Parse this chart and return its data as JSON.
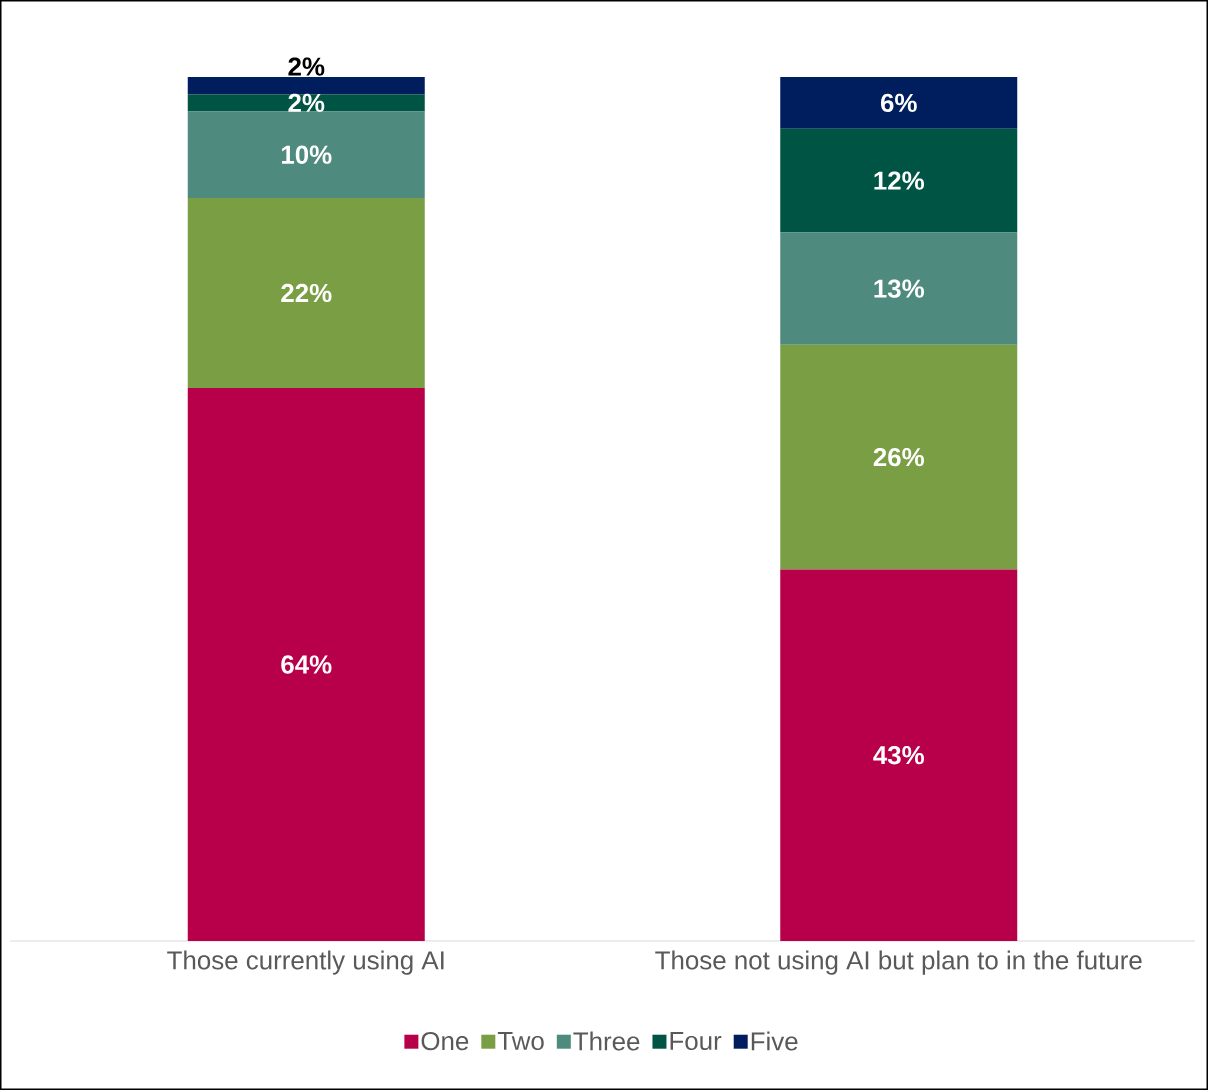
{
  "chart_data": {
    "type": "bar",
    "stacked": true,
    "categories": [
      "Those currently using AI",
      "Those not using AI but plan to in the future"
    ],
    "ylim": [
      0,
      100
    ],
    "tick_labels": "x",
    "legend": "bottom",
    "series": [
      {
        "name": "One",
        "color": "#b8004a",
        "values": [
          64,
          43
        ],
        "value_labels": [
          "64%",
          "43%"
        ]
      },
      {
        "name": "Two",
        "color": "#7a9e43",
        "values": [
          22,
          26
        ],
        "value_labels": [
          "22%",
          "26%"
        ]
      },
      {
        "name": "Three",
        "color": "#4e8a7e",
        "values": [
          10,
          13
        ],
        "value_labels": [
          "10%",
          "13%"
        ]
      },
      {
        "name": "Four",
        "color": "#005444",
        "values": [
          2,
          12
        ],
        "value_labels": [
          "2%",
          "12%"
        ]
      },
      {
        "name": "Five",
        "color": "#001e5e",
        "values": [
          2,
          6
        ],
        "value_labels": [
          "2%",
          "6%"
        ]
      }
    ]
  }
}
